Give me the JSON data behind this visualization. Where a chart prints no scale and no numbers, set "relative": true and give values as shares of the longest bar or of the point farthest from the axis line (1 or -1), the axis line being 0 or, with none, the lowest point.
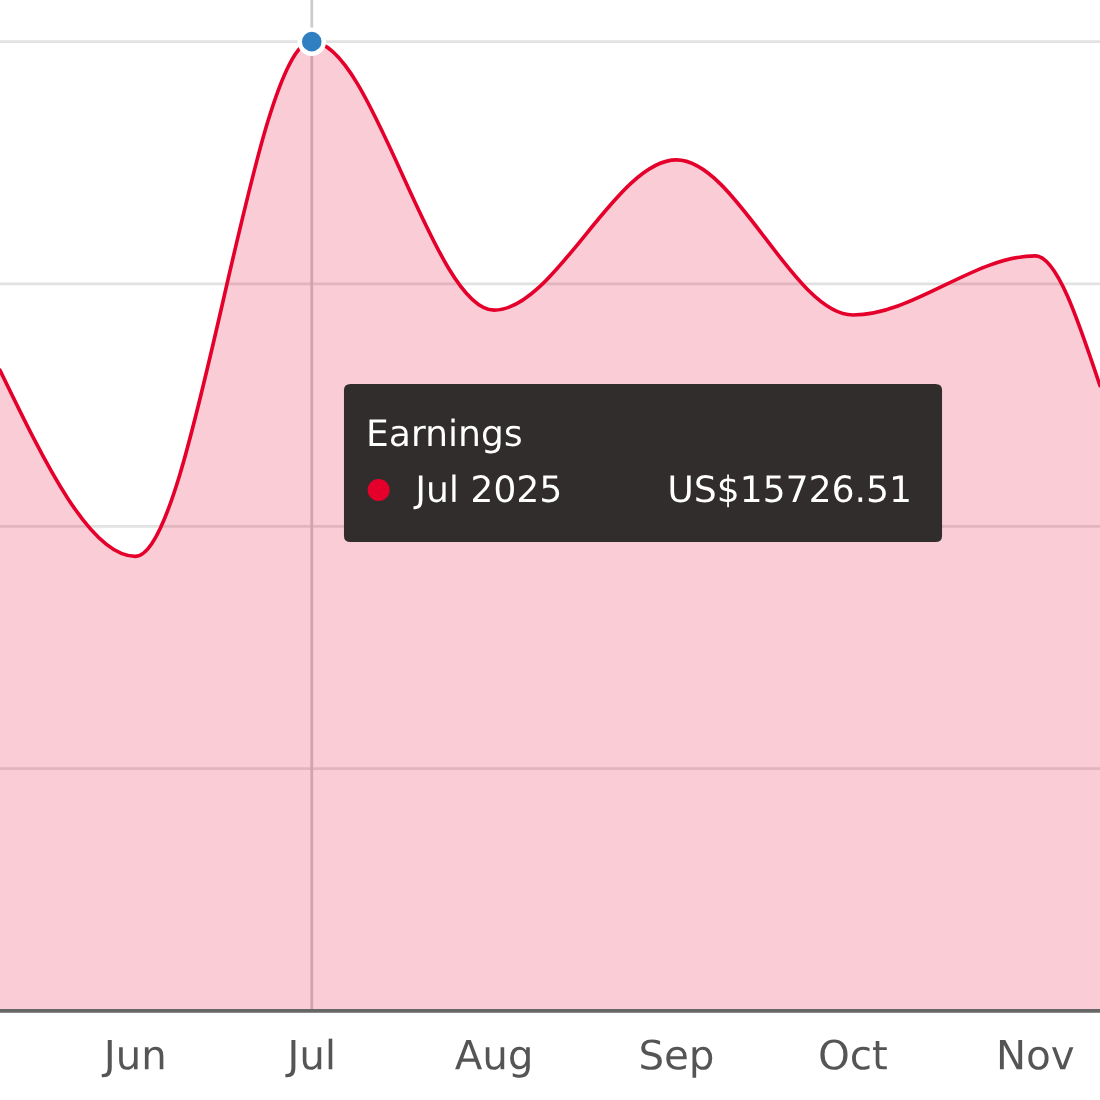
{
  "chart_data": {
    "type": "area",
    "relative": true,
    "series": [
      {
        "color": "#e4002b",
        "x": [
          "2025-05-09",
          "2025-06-01",
          "2025-07-01",
          "2025-08-01",
          "2025-09-01",
          "2025-10-01",
          "2025-11-01",
          "2025-11-12"
        ],
        "values": [
          0.661,
          0.469,
          1,
          0.723,
          0.878,
          0.718,
          0.779,
          0.645
        ]
      },
      {
        "type": "scatter",
        "color": "#2f7fc1",
        "x": [
          "2025-07-01"
        ],
        "values": [
          1
        ]
      }
    ],
    "xlim": [
      "2025-05-09",
      "2025-11-12"
    ],
    "xticks": [
      {
        "value": "2025-06-01",
        "label": "Jun"
      },
      {
        "value": "2025-07-01",
        "label": "Jul"
      },
      {
        "value": "2025-08-01",
        "label": "Aug"
      },
      {
        "value": "2025-09-01",
        "label": "Sep"
      },
      {
        "value": "2025-10-01",
        "label": "Oct"
      },
      {
        "value": "2025-11-01",
        "label": "Nov"
      }
    ],
    "grid": "y",
    "ref_lines": [
      {
        "axis": "x",
        "value": "2025-07-01",
        "color": "#cccccc"
      }
    ],
    "annotations": [
      "Earnings",
      "Jul 2025",
      "US$15726.51"
    ]
  }
}
